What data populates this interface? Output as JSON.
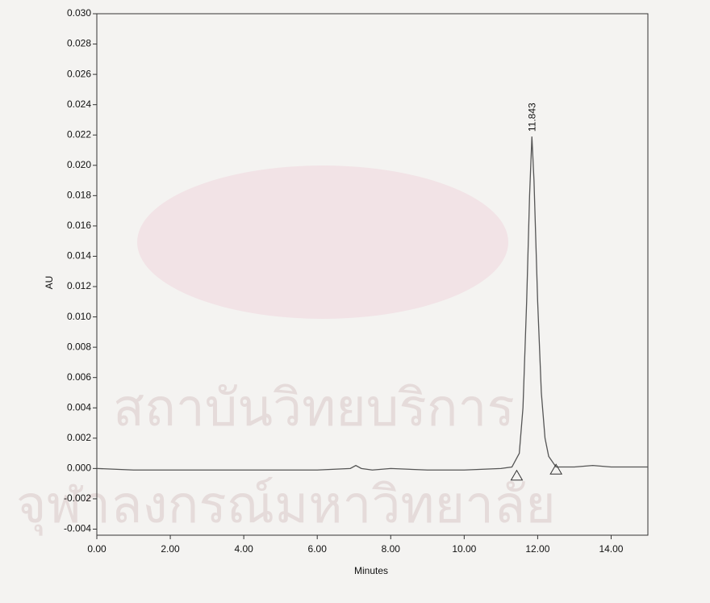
{
  "chart_data": {
    "type": "line",
    "xlabel": "Minutes",
    "ylabel": "AU",
    "x": [
      0,
      1,
      2,
      3,
      4,
      5,
      6,
      6.9,
      7.05,
      7.2,
      7.5,
      8,
      9,
      10,
      11,
      11.3,
      11.5,
      11.6,
      11.7,
      11.78,
      11.843,
      11.9,
      12.0,
      12.1,
      12.2,
      12.3,
      12.5,
      13,
      13.5,
      14,
      15
    ],
    "series": [
      {
        "color": "#555555",
        "values": [
          0.0,
          -0.0001,
          -0.0001,
          -0.0001,
          -0.0001,
          -0.0001,
          -0.0001,
          0.0,
          0.0002,
          0.0,
          -0.0001,
          0.0,
          -0.0001,
          -0.0001,
          0.0,
          0.0001,
          0.001,
          0.004,
          0.011,
          0.018,
          0.0219,
          0.019,
          0.011,
          0.005,
          0.002,
          0.0008,
          0.0001,
          0.0001,
          0.0002,
          0.0001,
          0.0001
        ]
      }
    ],
    "annotation": {
      "text": "11.843",
      "x": 11.843,
      "y": 0.0219
    },
    "baseline_markers": {
      "x": [
        11.43,
        12.5
      ],
      "y": [
        -0.0005,
        -0.0001
      ]
    },
    "watermark": [
      "สถาบันวิทยบริการ",
      "จุฬาลงกรณ์มหาวิทยาลัย"
    ],
    "xlim": [
      0,
      15
    ],
    "xticks": [
      {
        "value": 0,
        "label": "0.00"
      },
      {
        "value": 2,
        "label": "2.00"
      },
      {
        "value": 4,
        "label": "4.00"
      },
      {
        "value": 6,
        "label": "6.00"
      },
      {
        "value": 8,
        "label": "8.00"
      },
      {
        "value": 10,
        "label": "10.00"
      },
      {
        "value": 12,
        "label": "12.00"
      },
      {
        "value": 14,
        "label": "14.00"
      }
    ],
    "ylim": [
      -0.0044,
      0.03
    ],
    "yticks": [
      {
        "value": -0.004,
        "label": "-0.004"
      },
      {
        "value": -0.002,
        "label": "-0.002"
      },
      {
        "value": 0,
        "label": "0.000"
      },
      {
        "value": 0.002,
        "label": "0.002"
      },
      {
        "value": 0.004,
        "label": "0.004"
      },
      {
        "value": 0.006,
        "label": "0.006"
      },
      {
        "value": 0.008,
        "label": "0.008"
      },
      {
        "value": 0.01,
        "label": "0.010"
      },
      {
        "value": 0.012,
        "label": "0.012"
      },
      {
        "value": 0.014,
        "label": "0.014"
      },
      {
        "value": 0.016,
        "label": "0.016"
      },
      {
        "value": 0.018,
        "label": "0.018"
      },
      {
        "value": 0.02,
        "label": "0.020"
      },
      {
        "value": 0.022,
        "label": "0.022"
      },
      {
        "value": 0.024,
        "label": "0.024"
      },
      {
        "value": 0.026,
        "label": "0.026"
      },
      {
        "value": 0.028,
        "label": "0.028"
      },
      {
        "value": 0.03,
        "label": "0.030"
      }
    ],
    "grid": false
  }
}
